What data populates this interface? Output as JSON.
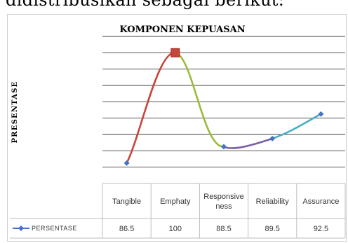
{
  "header_text": "didistribusikan sebagai berikut:",
  "chart_data": {
    "type": "line",
    "title": "KOMPONEN KEPUASAN",
    "xlabel": "",
    "ylabel": "PRESENTASE",
    "categories": [
      "Tangible",
      "Emphaty",
      "Responsiveness",
      "Reliability",
      "Assurance"
    ],
    "category_lines": [
      [
        "Tangible"
      ],
      [
        "Emphaty"
      ],
      [
        "Responsive",
        "ness"
      ],
      [
        "Reliability"
      ],
      [
        "Assurance"
      ]
    ],
    "series": [
      {
        "name": "PERSENTASE",
        "values": [
          86.5,
          100,
          88.5,
          89.5,
          92.5
        ]
      }
    ],
    "ylim": [
      84,
      102
    ],
    "grid": true,
    "data_table": true,
    "segment_colors": [
      "#c8453a",
      "#9bbb3b",
      "#7a5ea8",
      "#4aacc6"
    ],
    "series_color": "#4472c4"
  }
}
